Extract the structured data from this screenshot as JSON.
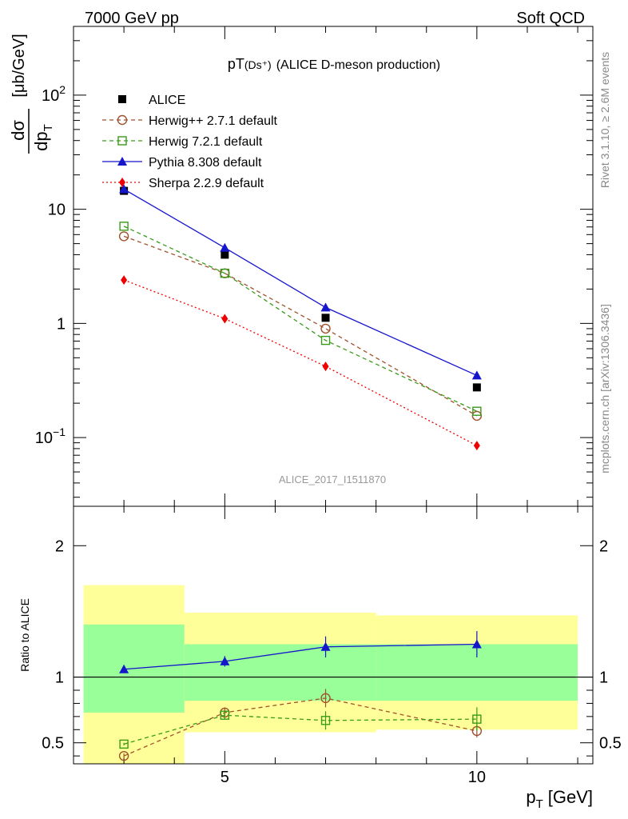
{
  "header": {
    "left": "7000 GeV pp",
    "right": "Soft QCD"
  },
  "side_text": {
    "rivet": "Rivet 3.1.10, ≥ 2.6M events",
    "site": "mcplots.cern.ch [arXiv:1306.3436]"
  },
  "chart_data": [
    {
      "type": "scatter",
      "title_main": "pT",
      "title_sub": "(Ds⁺)",
      "title_rest": "(ALICE D-meson production)",
      "ylabel_num": "dσ",
      "ylabel_den": "dp",
      "ylabel_den_sub": "T",
      "ylabel_unit": "[μb/GeV]",
      "yscale": "log",
      "ylim": [
        0.025,
        400
      ],
      "xlim": [
        2,
        12.3
      ],
      "y_ticks": [
        {
          "value": 0.1,
          "base": "10",
          "exp": "−1"
        },
        {
          "value": 1,
          "base": "1",
          "exp": ""
        },
        {
          "value": 10,
          "base": "10",
          "exp": ""
        },
        {
          "value": 100,
          "base": "10",
          "exp": "2"
        }
      ],
      "watermark": "ALICE_2017_I1511870",
      "legend_position": "top-left",
      "series": [
        {
          "name": "ALICE",
          "color": "#000000",
          "marker": "filled-square",
          "line": "none",
          "x": [
            3,
            5,
            7,
            10
          ],
          "y": [
            14.5,
            4.0,
            1.12,
            0.275
          ]
        },
        {
          "name": "Herwig++ 2.7.1 default",
          "color": "#a0522d",
          "marker": "open-circle",
          "line": "dashed",
          "x": [
            3,
            5,
            7,
            10
          ],
          "y": [
            5.8,
            2.75,
            0.9,
            0.155
          ]
        },
        {
          "name": "Herwig 7.2.1 default",
          "color": "#3a9a1a",
          "marker": "open-square",
          "line": "dashed",
          "x": [
            3,
            5,
            7,
            10
          ],
          "y": [
            7.1,
            2.75,
            0.71,
            0.17
          ]
        },
        {
          "name": "Pythia 8.308 default",
          "color": "#1515cc",
          "marker": "filled-triangle",
          "line": "solid",
          "x": [
            3,
            5,
            7,
            10
          ],
          "y": [
            15.0,
            4.6,
            1.38,
            0.35
          ]
        },
        {
          "name": "Sherpa 2.2.9 default",
          "color": "#ee0000",
          "marker": "filled-diamond",
          "line": "dotted",
          "x": [
            3,
            5,
            7,
            10
          ],
          "y": [
            2.4,
            1.1,
            0.42,
            0.085
          ]
        }
      ]
    },
    {
      "type": "scatter",
      "ylabel": "Ratio to ALICE",
      "xlabel_main": "p",
      "xlabel_sub": "T",
      "xlabel_unit": "[GeV]",
      "ylim": [
        0.34,
        2.3
      ],
      "xlim": [
        2,
        12.3
      ],
      "y_ticks": [
        0.5,
        1,
        2
      ],
      "x_ticks": [
        5,
        10
      ],
      "bands": [
        {
          "x0": 2.2,
          "x1": 4.2,
          "inner": [
            0.73,
            1.4
          ],
          "outer": [
            0.34,
            1.7
          ]
        },
        {
          "x0": 4.2,
          "x1": 8,
          "inner": [
            0.82,
            1.25
          ],
          "outer": [
            0.58,
            1.49
          ]
        },
        {
          "x0": 8,
          "x1": 12,
          "inner": [
            0.82,
            1.25
          ],
          "outer": [
            0.6,
            1.47
          ]
        }
      ],
      "band_colors": {
        "inner": "#99ff99",
        "outer": "#ffff99"
      },
      "series": [
        {
          "name": "Herwig++ 2.7.1 default",
          "x": [
            3,
            5,
            7,
            10
          ],
          "y": [
            0.4,
            0.73,
            0.84,
            0.59
          ],
          "err": [
            0.02,
            0.04,
            0.07,
            0.05
          ]
        },
        {
          "name": "Herwig 7.2.1 default",
          "x": [
            3,
            5,
            7,
            10
          ],
          "y": [
            0.49,
            0.71,
            0.67,
            0.68
          ],
          "err": [
            0.01,
            0.03,
            0.07,
            0.09
          ]
        },
        {
          "name": "Pythia 8.308 default",
          "x": [
            3,
            5,
            7,
            10
          ],
          "y": [
            1.06,
            1.12,
            1.23,
            1.25
          ],
          "err": [
            0.01,
            0.04,
            0.08,
            0.1
          ]
        }
      ]
    }
  ]
}
